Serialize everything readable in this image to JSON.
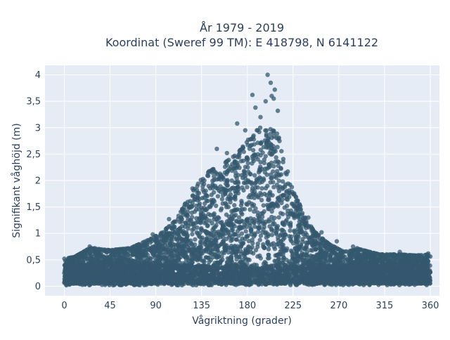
{
  "chart_data": {
    "type": "scatter",
    "title_lines": [
      "År 1979 - 2019",
      "Koordinat (Sweref 99 TM): E 418798, N 6141122"
    ],
    "xlabel": "Vågriktning (grader)",
    "ylabel": "Signifikant våghöjd (m)",
    "xlim": [
      -19,
      369
    ],
    "ylim": [
      -0.18,
      4.18
    ],
    "x_ticks": [
      0,
      45,
      90,
      135,
      180,
      225,
      270,
      315,
      360
    ],
    "x_tick_labels": [
      "0",
      "45",
      "90",
      "135",
      "180",
      "225",
      "270",
      "315",
      "360"
    ],
    "y_ticks": [
      0,
      0.5,
      1,
      1.5,
      2,
      2.5,
      3,
      3.5,
      4
    ],
    "y_tick_labels": [
      "0",
      "0,5",
      "1",
      "1,5",
      "2",
      "2,5",
      "3",
      "3,5",
      "4"
    ],
    "grid": true,
    "marker_color": "#34586e",
    "background_color": "#e5ecf6",
    "envelope": {
      "description_values": [
        [
          0,
          0.52
        ],
        [
          10,
          0.55
        ],
        [
          25,
          0.72
        ],
        [
          45,
          0.68
        ],
        [
          65,
          0.72
        ],
        [
          80,
          0.85
        ],
        [
          95,
          1.0
        ],
        [
          110,
          1.25
        ],
        [
          120,
          1.6
        ],
        [
          130,
          1.9
        ],
        [
          140,
          2.15
        ],
        [
          155,
          2.3
        ],
        [
          170,
          2.5
        ],
        [
          180,
          2.75
        ],
        [
          190,
          3.0
        ],
        [
          200,
          3.0
        ],
        [
          210,
          2.9
        ],
        [
          218,
          2.3
        ],
        [
          225,
          1.8
        ],
        [
          235,
          1.4
        ],
        [
          245,
          1.05
        ],
        [
          260,
          0.8
        ],
        [
          275,
          0.65
        ],
        [
          290,
          0.7
        ],
        [
          310,
          0.6
        ],
        [
          330,
          0.6
        ],
        [
          345,
          0.58
        ],
        [
          360,
          0.6
        ]
      ]
    },
    "sample_points": [
      [
        200,
        4.0
      ],
      [
        203,
        3.85
      ],
      [
        207,
        3.72
      ],
      [
        204,
        3.6
      ],
      [
        185,
        3.62
      ],
      [
        198,
        3.5
      ],
      [
        206,
        3.55
      ],
      [
        210,
        3.32
      ],
      [
        188,
        3.38
      ],
      [
        170,
        3.08
      ],
      [
        178,
        2.95
      ],
      [
        193,
        3.2
      ],
      [
        160,
        2.52
      ],
      [
        150,
        2.6
      ],
      [
        126,
        1.85
      ],
      [
        103,
        1.27
      ],
      [
        87,
        0.98
      ],
      [
        95,
        0.85
      ],
      [
        225,
        1.75
      ],
      [
        232,
        1.45
      ],
      [
        240,
        1.3
      ],
      [
        253,
        1.02
      ],
      [
        268,
        0.85
      ],
      [
        284,
        0.75
      ],
      [
        288,
        0.72
      ],
      [
        330,
        0.65
      ],
      [
        358,
        0.62
      ],
      [
        25,
        0.75
      ],
      [
        30,
        0.72
      ],
      [
        40,
        0.68
      ],
      [
        55,
        0.7
      ],
      [
        70,
        0.75
      ],
      [
        80,
        0.62
      ],
      [
        12,
        0.5
      ],
      [
        5,
        0.45
      ],
      [
        50,
        0.05
      ],
      [
        300,
        0.08
      ],
      [
        345,
        0.1
      ],
      [
        2,
        0.02
      ]
    ]
  }
}
